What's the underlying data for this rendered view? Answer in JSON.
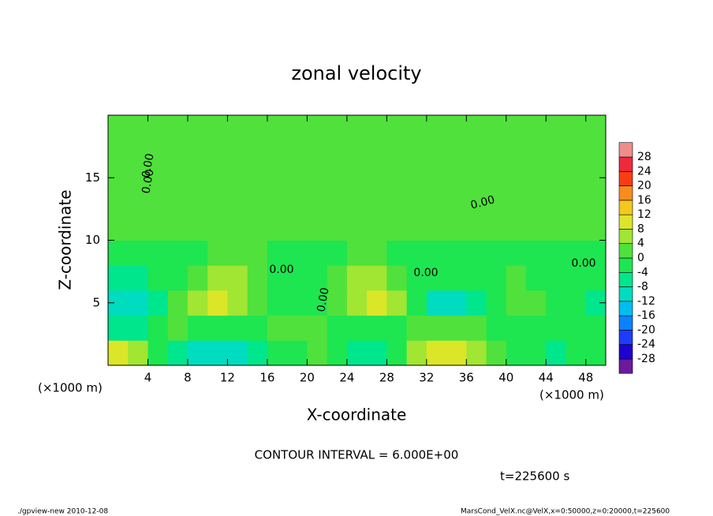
{
  "chart_data": {
    "type": "contour",
    "title": "zonal velocity",
    "x_label": "X-coordinate",
    "y_label": "Z-coordinate",
    "x_unit": "(×1000 m)",
    "y_unit": "(×1000 m)",
    "xlim": [
      0,
      50
    ],
    "ylim": [
      0,
      20
    ],
    "xticks": [
      4,
      8,
      12,
      16,
      20,
      24,
      28,
      32,
      36,
      40,
      44,
      48
    ],
    "yticks": [
      5,
      10,
      15
    ],
    "x": [
      1,
      3,
      5,
      7,
      9,
      11,
      13,
      15,
      17,
      19,
      21,
      23,
      25,
      27,
      29,
      31,
      33,
      35,
      37,
      39,
      41,
      43,
      45,
      47,
      49
    ],
    "y": [
      1,
      3,
      5,
      7,
      9,
      11,
      13,
      15,
      17,
      19
    ],
    "z": [
      [
        10,
        6,
        -2,
        -6,
        -10,
        -10,
        -10,
        -8,
        -2,
        -4,
        2,
        -2,
        -6,
        -8,
        -4,
        4,
        10,
        10,
        6,
        0,
        -2,
        -4,
        -6,
        -4,
        -2
      ],
      [
        -8,
        -6,
        -2,
        0,
        -2,
        -4,
        -4,
        -2,
        0,
        2,
        0,
        -2,
        -4,
        -4,
        -2,
        0,
        2,
        2,
        0,
        -2,
        -2,
        -2,
        -4,
        -2,
        -4
      ],
      [
        -10,
        -10,
        -6,
        0,
        6,
        8,
        6,
        2,
        -2,
        -4,
        -2,
        0,
        6,
        8,
        4,
        -4,
        -10,
        -10,
        -6,
        -2,
        2,
        0,
        -2,
        -4,
        -6
      ],
      [
        -6,
        -6,
        -4,
        -2,
        0,
        4,
        4,
        0,
        -2,
        -2,
        -2,
        0,
        4,
        6,
        2,
        -2,
        -4,
        -4,
        -2,
        -2,
        0,
        -2,
        -4,
        -4,
        -4
      ],
      [
        -2,
        -2,
        -2,
        -2,
        -2,
        0,
        0,
        0,
        -2,
        -2,
        -2,
        -2,
        0,
        0,
        -2,
        -2,
        -2,
        -2,
        -2,
        -2,
        -2,
        -2,
        -2,
        -2,
        -2
      ],
      [
        0,
        2,
        2,
        2,
        2,
        2,
        2,
        2,
        2,
        2,
        2,
        0,
        2,
        2,
        2,
        2,
        2,
        2,
        2,
        2,
        2,
        2,
        2,
        0,
        0
      ],
      [
        0,
        2,
        2,
        2,
        2,
        2,
        2,
        2,
        2,
        2,
        2,
        2,
        2,
        2,
        2,
        2,
        2,
        2,
        2,
        2,
        2,
        2,
        0,
        0,
        0
      ],
      [
        0,
        0,
        0,
        2,
        2,
        2,
        2,
        2,
        2,
        2,
        2,
        2,
        2,
        2,
        2,
        2,
        2,
        2,
        2,
        2,
        2,
        2,
        2,
        2,
        2
      ],
      [
        0,
        0,
        0,
        0,
        2,
        2,
        2,
        2,
        2,
        2,
        2,
        2,
        2,
        2,
        2,
        2,
        2,
        2,
        2,
        2,
        2,
        2,
        2,
        2,
        2
      ],
      [
        0,
        0,
        0,
        0,
        0,
        0,
        2,
        2,
        2,
        2,
        2,
        2,
        2,
        2,
        2,
        2,
        0,
        0,
        2,
        2,
        2,
        2,
        2,
        2,
        2
      ]
    ],
    "levels": [
      -28,
      -24,
      -20,
      -16,
      -12,
      -8,
      -4,
      0,
      4,
      8,
      12,
      16,
      20,
      24,
      28
    ],
    "colors": [
      "#6a1a9a",
      "#1e00d0",
      "#1e3cff",
      "#0a82ff",
      "#00bef0",
      "#00dcc0",
      "#00e68c",
      "#1ee650",
      "#50e13c",
      "#a0e632",
      "#dce628",
      "#f5c81e",
      "#fa8c1e",
      "#fa3c14",
      "#f0283c",
      "#f08c8c"
    ],
    "contour_labels": [
      "0.00",
      "0.00",
      "0.00",
      "0.00",
      "0.00",
      "0.00",
      "0.00"
    ],
    "contour_interval": "CONTOUR INTERVAL = 6.000E+00",
    "time_label": "t=225600 s",
    "footer_left": "./gpview-new  2010-12-08",
    "footer_right": "MarsCond_VelX.nc@VelX,x=0:50000,z=0:20000,t=225600"
  }
}
